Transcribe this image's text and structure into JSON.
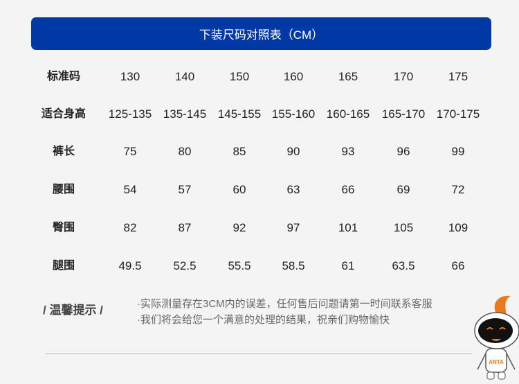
{
  "title": "下装尺码对照表（CM）",
  "table": {
    "rows": [
      {
        "label": "标准码",
        "values": [
          "130",
          "140",
          "150",
          "160",
          "165",
          "170",
          "175"
        ]
      },
      {
        "label": "适合身高",
        "values": [
          "125-135",
          "135-145",
          "145-155",
          "155-160",
          "160-165",
          "165-170",
          "170-175"
        ]
      },
      {
        "label": "裤长",
        "values": [
          "75",
          "80",
          "85",
          "90",
          "93",
          "96",
          "99"
        ]
      },
      {
        "label": "腰围",
        "values": [
          "54",
          "57",
          "60",
          "63",
          "66",
          "69",
          "72"
        ]
      },
      {
        "label": "臀围",
        "values": [
          "82",
          "87",
          "92",
          "97",
          "101",
          "105",
          "109"
        ]
      },
      {
        "label": "腿围",
        "values": [
          "49.5",
          "52.5",
          "55.5",
          "58.5",
          "61",
          "63.5",
          "66"
        ]
      }
    ]
  },
  "tips": {
    "title": "/ 温馨提示 /",
    "lines": [
      "·实际测量存在3CM内的误差，任何售后问题请第一时间联系客服",
      "·我们将会给您一个满意的处理的结果，祝亲们购物愉快"
    ]
  },
  "mascot_logo": "ANTA",
  "colors": {
    "header": "#0039a6",
    "mascot_accent": "#e8791e"
  }
}
